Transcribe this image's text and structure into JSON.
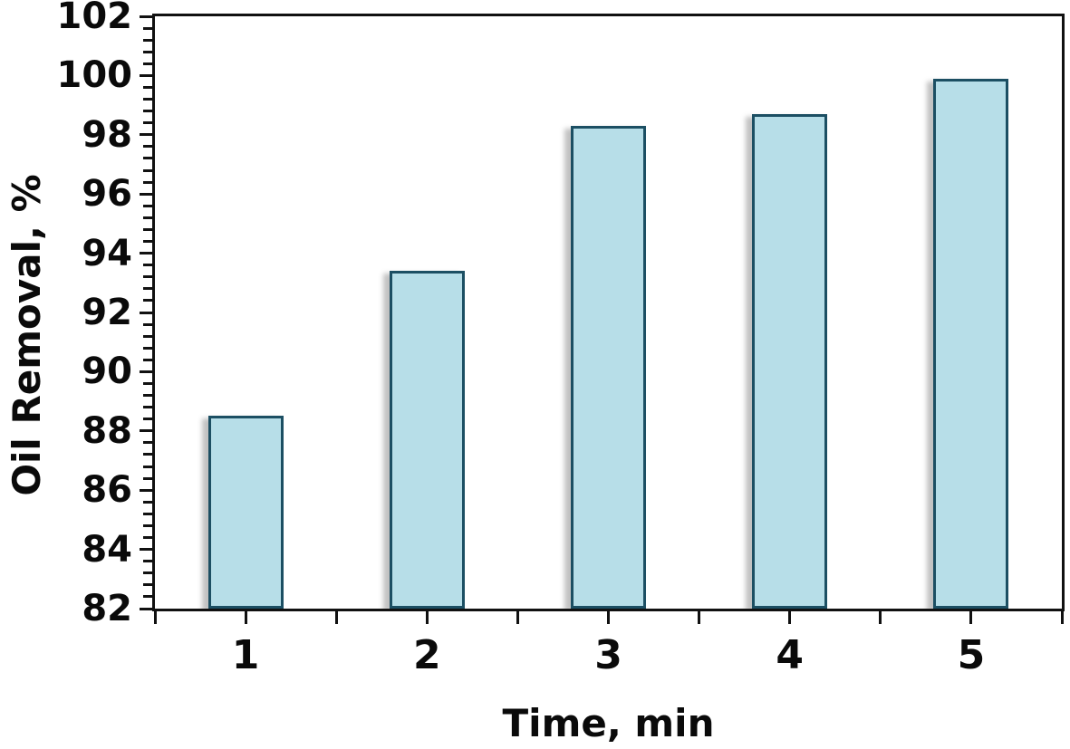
{
  "chart_data": {
    "type": "bar",
    "categories": [
      "1",
      "2",
      "3",
      "4",
      "5"
    ],
    "values": [
      88.5,
      93.4,
      98.3,
      98.7,
      99.9
    ],
    "title": "",
    "xlabel": "Time, min",
    "ylabel": "Oil Removal, %",
    "ylim": [
      82,
      102
    ],
    "yticks": [
      82,
      84,
      86,
      88,
      90,
      92,
      94,
      96,
      98,
      100,
      102
    ],
    "yminor_per_major": 4,
    "x_minor_between_categories": true,
    "grid": false,
    "legend": false,
    "colors": {
      "bar_fill": "#b7dee8",
      "bar_border": "#1c4f63",
      "bar_shadow": "rgba(120,120,120,0.45)",
      "axis": "#111111",
      "text": "#0a0a0a",
      "background": "#ffffff"
    }
  }
}
